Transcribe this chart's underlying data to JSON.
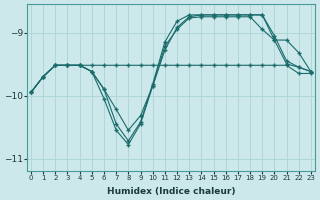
{
  "xlabel": "Humidex (Indice chaleur)",
  "background_color": "#cce8ea",
  "grid_color": "#aad4d8",
  "line_color": "#1a6b6b",
  "xlim": [
    -0.3,
    23.3
  ],
  "ylim": [
    -11.2,
    -8.55
  ],
  "yticks": [
    -11,
    -10,
    -9
  ],
  "xticks": [
    0,
    1,
    2,
    3,
    4,
    5,
    6,
    7,
    8,
    9,
    10,
    11,
    12,
    13,
    14,
    15,
    16,
    17,
    18,
    19,
    20,
    21,
    22,
    23
  ],
  "curves": [
    {
      "points": [
        [
          0,
          -9.95
        ],
        [
          1,
          -9.7
        ],
        [
          2,
          -9.52
        ],
        [
          3,
          -9.52
        ],
        [
          4,
          -9.52
        ],
        [
          5,
          -9.52
        ],
        [
          6,
          -9.52
        ],
        [
          7,
          -9.52
        ],
        [
          8,
          -9.52
        ],
        [
          9,
          -9.52
        ],
        [
          10,
          -9.52
        ],
        [
          11,
          -9.52
        ],
        [
          12,
          -9.52
        ],
        [
          13,
          -9.52
        ],
        [
          14,
          -9.52
        ],
        [
          15,
          -9.52
        ],
        [
          16,
          -9.52
        ],
        [
          17,
          -9.52
        ],
        [
          18,
          -9.52
        ],
        [
          19,
          -9.52
        ],
        [
          20,
          -9.52
        ],
        [
          21,
          -9.52
        ],
        [
          22,
          -9.65
        ],
        [
          23,
          -9.65
        ]
      ]
    },
    {
      "points": [
        [
          0,
          -9.95
        ],
        [
          1,
          -9.7
        ],
        [
          2,
          -9.52
        ],
        [
          3,
          -9.52
        ],
        [
          4,
          -9.52
        ],
        [
          5,
          -9.62
        ],
        [
          6,
          -9.9
        ],
        [
          7,
          -10.22
        ],
        [
          8,
          -10.55
        ],
        [
          9,
          -10.32
        ],
        [
          10,
          -9.85
        ],
        [
          11,
          -9.22
        ],
        [
          12,
          -8.95
        ],
        [
          13,
          -8.77
        ],
        [
          14,
          -8.75
        ],
        [
          15,
          -8.75
        ],
        [
          16,
          -8.75
        ],
        [
          17,
          -8.75
        ],
        [
          18,
          -8.75
        ],
        [
          19,
          -8.95
        ],
        [
          20,
          -9.12
        ],
        [
          21,
          -9.12
        ],
        [
          22,
          -9.32
        ],
        [
          23,
          -9.62
        ]
      ]
    },
    {
      "points": [
        [
          0,
          -9.95
        ],
        [
          1,
          -9.7
        ],
        [
          2,
          -9.52
        ],
        [
          3,
          -9.52
        ],
        [
          4,
          -9.52
        ],
        [
          5,
          -9.62
        ],
        [
          6,
          -9.9
        ],
        [
          7,
          -10.45
        ],
        [
          8,
          -10.72
        ],
        [
          9,
          -10.42
        ],
        [
          10,
          -9.82
        ],
        [
          11,
          -9.15
        ],
        [
          12,
          -8.82
        ],
        [
          13,
          -8.72
        ],
        [
          14,
          -8.72
        ],
        [
          15,
          -8.72
        ],
        [
          16,
          -8.72
        ],
        [
          17,
          -8.72
        ],
        [
          18,
          -8.72
        ],
        [
          19,
          -8.72
        ],
        [
          20,
          -9.05
        ],
        [
          21,
          -9.45
        ],
        [
          22,
          -9.55
        ],
        [
          23,
          -9.62
        ]
      ]
    },
    {
      "points": [
        [
          0,
          -9.95
        ],
        [
          1,
          -9.7
        ],
        [
          2,
          -9.52
        ],
        [
          3,
          -9.52
        ],
        [
          4,
          -9.52
        ],
        [
          5,
          -9.62
        ],
        [
          6,
          -10.05
        ],
        [
          7,
          -10.55
        ],
        [
          8,
          -10.78
        ],
        [
          9,
          -10.45
        ],
        [
          10,
          -9.85
        ],
        [
          11,
          -9.28
        ],
        [
          12,
          -8.92
        ],
        [
          13,
          -8.75
        ],
        [
          14,
          -8.72
        ],
        [
          15,
          -8.72
        ],
        [
          16,
          -8.72
        ],
        [
          17,
          -8.72
        ],
        [
          18,
          -8.72
        ],
        [
          19,
          -8.72
        ],
        [
          20,
          -9.12
        ],
        [
          21,
          -9.5
        ],
        [
          22,
          -9.55
        ],
        [
          23,
          -9.62
        ]
      ]
    }
  ]
}
